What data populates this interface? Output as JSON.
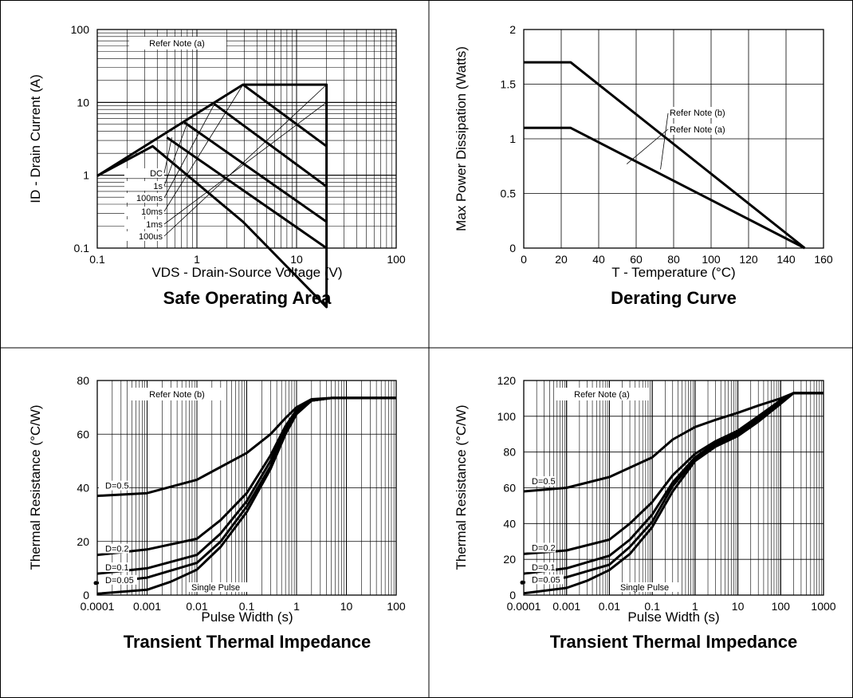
{
  "chart_data": [
    {
      "type": "line",
      "title": "Safe Operating Area",
      "xlabel": "VDS - Drain-Source Voltage (V)",
      "xlabel_sub": "DS",
      "ylabel": "ID - Drain Current (A)",
      "ylabel_sub": "D",
      "xscale": "log",
      "yscale": "log",
      "xlim": [
        0.1,
        100
      ],
      "ylim": [
        0.1,
        100
      ],
      "xticks": [
        "0.1",
        "1",
        "10",
        "100"
      ],
      "yticks": [
        "0.1",
        "1",
        "10",
        "100"
      ],
      "grid": true,
      "note": "Refer Note (a)",
      "series": [
        {
          "name": "DC",
          "x": [
            0.1,
            0.36,
            2.9,
            20,
            20
          ],
          "y": [
            0.98,
            2.5,
            0.23,
            0.0155,
            0.1
          ]
        },
        {
          "name": "1s",
          "x": [
            0.5,
            20,
            20
          ],
          "y": [
            3.3,
            0.1,
            0.1
          ]
        },
        {
          "name": "100ms",
          "x": [
            0.75,
            20,
            20
          ],
          "y": [
            5.3,
            0.23,
            0.23
          ]
        },
        {
          "name": "10ms",
          "x": [
            1.5,
            20,
            20
          ],
          "y": [
            9.5,
            0.7,
            0.7
          ]
        },
        {
          "name": "1ms",
          "x": [
            2.9,
            20,
            20
          ],
          "y": [
            17.5,
            2.5,
            2.5
          ]
        },
        {
          "name": "100us",
          "x": [
            0.1,
            2.9,
            20,
            20,
            20
          ],
          "y": [
            0.98,
            17.5,
            17.5,
            10,
            0.1
          ]
        }
      ]
    },
    {
      "type": "line",
      "title": "Derating Curve",
      "xlabel": "T - Temperature (°C)",
      "ylabel": "Max Power Dissipation (Watts)",
      "xlim": [
        0,
        160
      ],
      "ylim": [
        0,
        2
      ],
      "xticks": [
        "0",
        "20",
        "40",
        "60",
        "80",
        "100",
        "120",
        "140",
        "160"
      ],
      "yticks": [
        "0",
        "0.5",
        "1",
        "1.5",
        "2"
      ],
      "grid": true,
      "series": [
        {
          "name": "Refer Note (b)",
          "x": [
            0,
            25,
            150
          ],
          "y": [
            1.7,
            1.7,
            0
          ]
        },
        {
          "name": "Refer Note (a)",
          "x": [
            0,
            25,
            150
          ],
          "y": [
            1.1,
            1.1,
            0
          ]
        }
      ]
    },
    {
      "type": "line",
      "title": "Transient Thermal Impedance",
      "xlabel": "Pulse Width (s)",
      "ylabel": "Thermal Resistance (°C/W)",
      "xscale": "log",
      "xlim": [
        0.0001,
        100
      ],
      "ylim": [
        0,
        80
      ],
      "xticks": [
        "0.0001",
        "0.001",
        "0.01",
        "0.1",
        "1",
        "10",
        "100"
      ],
      "yticks": [
        "0",
        "20",
        "40",
        "60",
        "80"
      ],
      "grid": true,
      "note": "Refer Note (b)",
      "series": [
        {
          "name": "D=0.5",
          "x": [
            0.0001,
            0.001,
            0.01,
            0.1,
            0.3,
            0.6,
            1,
            2,
            5,
            100
          ],
          "y": [
            37,
            38,
            43,
            53,
            60,
            66,
            70,
            73,
            73.5,
            73.5
          ]
        },
        {
          "name": "D=0.2",
          "x": [
            0.0001,
            0.001,
            0.01,
            0.03,
            0.1,
            0.3,
            0.6,
            1,
            2,
            5,
            100
          ],
          "y": [
            15,
            17,
            21,
            28,
            38,
            52,
            63,
            69,
            72.5,
            73.5,
            73.5
          ]
        },
        {
          "name": "D=0.1",
          "x": [
            0.0001,
            0.001,
            0.01,
            0.03,
            0.1,
            0.3,
            0.6,
            1,
            2,
            5,
            100
          ],
          "y": [
            8,
            10,
            15,
            23,
            35,
            50,
            62,
            68.5,
            72.5,
            73.5,
            73.5
          ]
        },
        {
          "name": "D=0.05",
          "x": [
            0.0001,
            0.001,
            0.01,
            0.03,
            0.1,
            0.3,
            0.6,
            1,
            2,
            5,
            100
          ],
          "y": [
            4.5,
            6.5,
            12,
            20,
            33,
            48,
            61,
            68,
            72.5,
            73.5,
            73.5
          ]
        },
        {
          "name": "Single Pulse",
          "x": [
            0.0001,
            0.001,
            0.003,
            0.01,
            0.03,
            0.1,
            0.3,
            0.6,
            1,
            2,
            5,
            100
          ],
          "y": [
            0.5,
            2,
            5,
            9.5,
            18,
            31,
            47,
            60,
            67.5,
            72.5,
            73.5,
            73.5
          ]
        }
      ]
    },
    {
      "type": "line",
      "title": "Transient Thermal Impedance",
      "xlabel": "Pulse Width (s)",
      "ylabel": "Thermal Resistance (°C/W)",
      "xscale": "log",
      "xlim": [
        0.0001,
        1000
      ],
      "ylim": [
        0,
        120
      ],
      "xticks": [
        "0.0001",
        "0.001",
        "0.01",
        "0.1",
        "1",
        "10",
        "100",
        "1000"
      ],
      "yticks": [
        "0",
        "20",
        "40",
        "60",
        "80",
        "100",
        "120"
      ],
      "grid": true,
      "note": "Refer Note (a)",
      "series": [
        {
          "name": "D=0.5",
          "x": [
            0.0001,
            0.001,
            0.01,
            0.1,
            0.3,
            1,
            3,
            10,
            30,
            100,
            200,
            1000
          ],
          "y": [
            58,
            60,
            66,
            77,
            87,
            94,
            98,
            102,
            106,
            110,
            113,
            113
          ]
        },
        {
          "name": "D=0.2",
          "x": [
            0.0001,
            0.001,
            0.01,
            0.03,
            0.1,
            0.3,
            1,
            3,
            10,
            30,
            100,
            200,
            1000
          ],
          "y": [
            23,
            25,
            31,
            40,
            52,
            67,
            79,
            86,
            92,
            100,
            109,
            113,
            113
          ]
        },
        {
          "name": "D=0.1",
          "x": [
            0.0001,
            0.001,
            0.01,
            0.03,
            0.1,
            0.3,
            1,
            3,
            10,
            30,
            100,
            200,
            1000
          ],
          "y": [
            12,
            15,
            22,
            31,
            45,
            63,
            77,
            85,
            91,
            99,
            109,
            113,
            113
          ]
        },
        {
          "name": "D=0.05",
          "x": [
            0.0001,
            0.001,
            0.01,
            0.03,
            0.1,
            0.3,
            1,
            3,
            10,
            30,
            100,
            200,
            1000
          ],
          "y": [
            7,
            10,
            17,
            27,
            41,
            61,
            76,
            84,
            90,
            98,
            108,
            113,
            113
          ]
        },
        {
          "name": "Single Pulse",
          "x": [
            0.0001,
            0.001,
            0.003,
            0.01,
            0.03,
            0.1,
            0.3,
            1,
            3,
            10,
            30,
            100,
            200,
            1000
          ],
          "y": [
            1,
            4,
            8,
            14,
            23,
            38,
            58,
            75,
            83,
            89,
            97,
            107,
            113,
            113
          ]
        }
      ]
    }
  ]
}
